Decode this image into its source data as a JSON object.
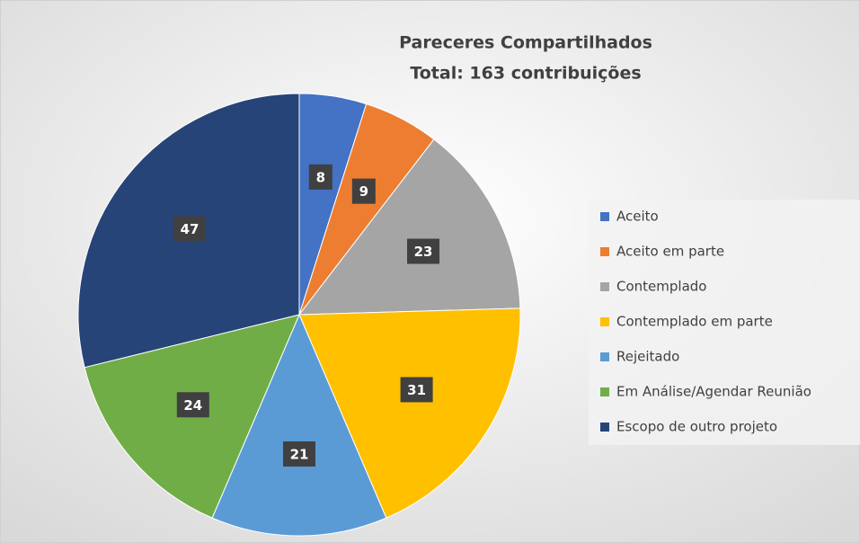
{
  "chart_data": {
    "type": "pie",
    "title": "Pareceres Compartilhados",
    "subtitle": "Total: 163 contribuições",
    "categories": [
      "Aceito",
      "Aceito em parte",
      "Contemplado",
      "Contemplado em parte",
      "Rejeitado",
      "Em Análise/Agendar Reunião",
      "Escopo de outro projeto"
    ],
    "values": [
      8,
      9,
      23,
      31,
      21,
      24,
      47
    ],
    "colors": [
      "#4472c4",
      "#ed7d31",
      "#a5a5a5",
      "#ffc000",
      "#5b9bd5",
      "#70ad47",
      "#264478"
    ],
    "legend": "right"
  }
}
